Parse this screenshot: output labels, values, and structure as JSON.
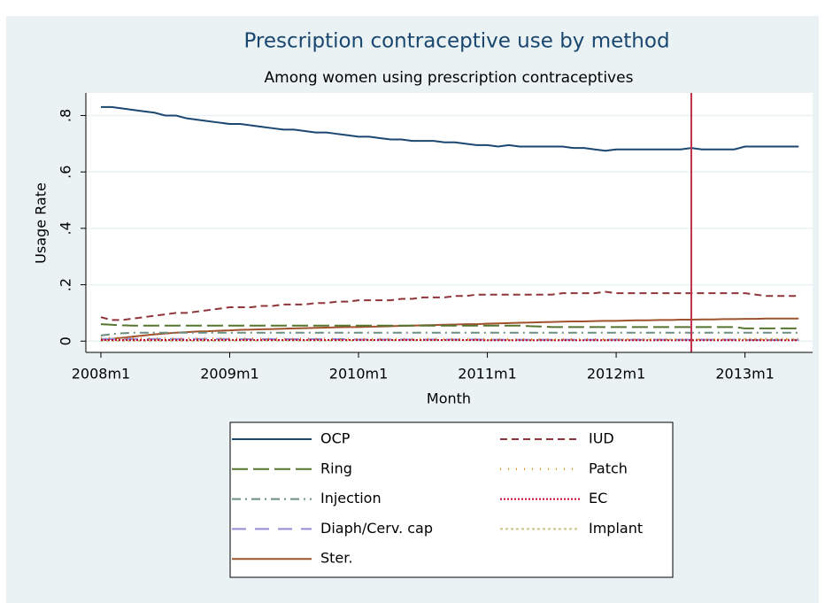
{
  "chart_data": {
    "type": "line",
    "title": "Prescription contraceptive use by method",
    "subtitle": "Among women using prescription contraceptives",
    "x_label": "Month",
    "y_label": "Usage Rate",
    "xlim": [
      574.6,
      642.3
    ],
    "ylim": [
      -0.04,
      0.88
    ],
    "xticks": [
      {
        "value": 576,
        "label": "2008m1"
      },
      {
        "value": 588,
        "label": "2009m1"
      },
      {
        "value": 600,
        "label": "2010m1"
      },
      {
        "value": 612,
        "label": "2011m1"
      },
      {
        "value": 624,
        "label": "2012m1"
      },
      {
        "value": 636,
        "label": "2013m1"
      }
    ],
    "yticks": [
      0,
      {
        "value": 0.2,
        "label": ".2"
      },
      {
        "value": 0.4,
        "label": ".4"
      },
      {
        "value": 0.6,
        "label": ".6"
      },
      {
        "value": 0.8,
        "label": ".8"
      }
    ],
    "grid": true,
    "legend": "bottom",
    "legend_columns": 2,
    "reference_line": {
      "x": 631,
      "color": "#c0304a"
    },
    "x": [
      576,
      577,
      578,
      579,
      580,
      581,
      582,
      583,
      584,
      585,
      586,
      587,
      588,
      589,
      590,
      591,
      592,
      593,
      594,
      595,
      596,
      597,
      598,
      599,
      600,
      601,
      602,
      603,
      604,
      605,
      606,
      607,
      608,
      609,
      610,
      611,
      612,
      613,
      614,
      615,
      616,
      617,
      618,
      619,
      620,
      621,
      622,
      623,
      624,
      625,
      626,
      627,
      628,
      629,
      630,
      631,
      632,
      633,
      634,
      635,
      636,
      637,
      638,
      639,
      640,
      641
    ],
    "series": [
      {
        "name": "OCP",
        "color": "#1a476f",
        "dash": "none",
        "values": [
          0.83,
          0.83,
          0.825,
          0.82,
          0.815,
          0.81,
          0.8,
          0.8,
          0.79,
          0.785,
          0.78,
          0.775,
          0.77,
          0.77,
          0.765,
          0.76,
          0.755,
          0.75,
          0.75,
          0.745,
          0.74,
          0.74,
          0.735,
          0.73,
          0.725,
          0.725,
          0.72,
          0.715,
          0.715,
          0.71,
          0.71,
          0.71,
          0.705,
          0.705,
          0.7,
          0.695,
          0.695,
          0.69,
          0.695,
          0.69,
          0.69,
          0.69,
          0.69,
          0.69,
          0.685,
          0.685,
          0.68,
          0.675,
          0.68,
          0.68,
          0.68,
          0.68,
          0.68,
          0.68,
          0.68,
          0.685,
          0.68,
          0.68,
          0.68,
          0.68,
          0.69,
          0.69,
          0.69,
          0.69,
          0.69,
          0.69
        ]
      },
      {
        "name": "IUD",
        "color": "#90353b",
        "dash": "8,5",
        "values": [
          0.085,
          0.075,
          0.075,
          0.08,
          0.085,
          0.09,
          0.095,
          0.1,
          0.1,
          0.105,
          0.11,
          0.115,
          0.12,
          0.12,
          0.12,
          0.125,
          0.125,
          0.13,
          0.13,
          0.13,
          0.135,
          0.135,
          0.14,
          0.14,
          0.145,
          0.145,
          0.145,
          0.145,
          0.15,
          0.15,
          0.155,
          0.155,
          0.155,
          0.16,
          0.16,
          0.165,
          0.165,
          0.165,
          0.165,
          0.165,
          0.165,
          0.165,
          0.165,
          0.17,
          0.17,
          0.17,
          0.17,
          0.175,
          0.17,
          0.17,
          0.17,
          0.17,
          0.17,
          0.17,
          0.17,
          0.17,
          0.17,
          0.17,
          0.17,
          0.17,
          0.17,
          0.165,
          0.16,
          0.16,
          0.16,
          0.16
        ]
      },
      {
        "name": "Ring",
        "color": "#55752f",
        "dash": "18,6",
        "values": [
          0.06,
          0.058,
          0.056,
          0.055,
          0.055,
          0.055,
          0.055,
          0.055,
          0.055,
          0.055,
          0.055,
          0.055,
          0.055,
          0.055,
          0.055,
          0.055,
          0.055,
          0.055,
          0.055,
          0.055,
          0.055,
          0.055,
          0.055,
          0.055,
          0.055,
          0.055,
          0.055,
          0.055,
          0.055,
          0.055,
          0.055,
          0.055,
          0.055,
          0.055,
          0.055,
          0.055,
          0.055,
          0.055,
          0.055,
          0.055,
          0.053,
          0.052,
          0.05,
          0.05,
          0.05,
          0.05,
          0.05,
          0.05,
          0.05,
          0.05,
          0.05,
          0.05,
          0.05,
          0.05,
          0.05,
          0.05,
          0.05,
          0.05,
          0.05,
          0.05,
          0.045,
          0.045,
          0.045,
          0.045,
          0.045,
          0.045
        ]
      },
      {
        "name": "Patch",
        "color": "#e37e00",
        "dash": "1,8",
        "values": [
          0.012,
          0.012,
          0.011,
          0.011,
          0.01,
          0.01,
          0.01,
          0.01,
          0.01,
          0.01,
          0.01,
          0.01,
          0.01,
          0.01,
          0.01,
          0.009,
          0.009,
          0.009,
          0.009,
          0.009,
          0.009,
          0.009,
          0.008,
          0.008,
          0.008,
          0.008,
          0.008,
          0.008,
          0.008,
          0.008,
          0.008,
          0.008,
          0.008,
          0.008,
          0.008,
          0.008,
          0.007,
          0.007,
          0.007,
          0.007,
          0.007,
          0.007,
          0.007,
          0.007,
          0.007,
          0.007,
          0.007,
          0.007,
          0.006,
          0.006,
          0.006,
          0.006,
          0.006,
          0.006,
          0.006,
          0.006,
          0.006,
          0.006,
          0.006,
          0.006,
          0.005,
          0.005,
          0.005,
          0.005,
          0.005,
          0.005
        ]
      },
      {
        "name": "Injection",
        "color": "#6e8e84",
        "dash": "10,5,2,5",
        "values": [
          0.02,
          0.025,
          0.028,
          0.03,
          0.03,
          0.03,
          0.03,
          0.03,
          0.03,
          0.03,
          0.03,
          0.03,
          0.03,
          0.03,
          0.03,
          0.03,
          0.03,
          0.03,
          0.03,
          0.03,
          0.03,
          0.03,
          0.03,
          0.03,
          0.03,
          0.03,
          0.03,
          0.03,
          0.03,
          0.03,
          0.03,
          0.03,
          0.03,
          0.03,
          0.03,
          0.03,
          0.03,
          0.03,
          0.03,
          0.03,
          0.03,
          0.03,
          0.03,
          0.03,
          0.03,
          0.03,
          0.03,
          0.03,
          0.03,
          0.03,
          0.03,
          0.03,
          0.03,
          0.03,
          0.03,
          0.03,
          0.03,
          0.03,
          0.03,
          0.03,
          0.03,
          0.03,
          0.03,
          0.03,
          0.03,
          0.03
        ]
      },
      {
        "name": "EC",
        "color": "#c10534",
        "dash": "2,2",
        "values": [
          0.004,
          0.004,
          0.004,
          0.004,
          0.004,
          0.004,
          0.004,
          0.004,
          0.004,
          0.004,
          0.004,
          0.004,
          0.004,
          0.004,
          0.004,
          0.004,
          0.004,
          0.004,
          0.004,
          0.004,
          0.004,
          0.004,
          0.004,
          0.004,
          0.004,
          0.004,
          0.004,
          0.004,
          0.004,
          0.004,
          0.004,
          0.004,
          0.004,
          0.004,
          0.004,
          0.004,
          0.003,
          0.003,
          0.003,
          0.003,
          0.003,
          0.003,
          0.003,
          0.003,
          0.003,
          0.003,
          0.003,
          0.003,
          0.003,
          0.003,
          0.003,
          0.003,
          0.003,
          0.003,
          0.003,
          0.003,
          0.003,
          0.003,
          0.003,
          0.003,
          0.003,
          0.003,
          0.003,
          0.003,
          0.003,
          0.003
        ]
      },
      {
        "name": "Diaph/Cerv. cap",
        "color": "#938dd2",
        "dash": "16,10",
        "values": [
          0.008,
          0.008,
          0.008,
          0.008,
          0.008,
          0.008,
          0.008,
          0.008,
          0.008,
          0.008,
          0.008,
          0.008,
          0.007,
          0.007,
          0.007,
          0.007,
          0.007,
          0.007,
          0.007,
          0.007,
          0.007,
          0.007,
          0.007,
          0.007,
          0.006,
          0.006,
          0.006,
          0.006,
          0.006,
          0.006,
          0.006,
          0.006,
          0.006,
          0.006,
          0.006,
          0.006,
          0.005,
          0.005,
          0.005,
          0.005,
          0.005,
          0.005,
          0.005,
          0.005,
          0.005,
          0.005,
          0.005,
          0.005,
          0.005,
          0.005,
          0.005,
          0.005,
          0.005,
          0.005,
          0.005,
          0.005,
          0.005,
          0.005,
          0.005,
          0.005,
          0.004,
          0.004,
          0.004,
          0.004,
          0.004,
          0.004
        ]
      },
      {
        "name": "Implant",
        "color": "#cac27e",
        "dash": "3,3",
        "values": [
          0.001,
          0.001,
          0.001,
          0.001,
          0.001,
          0.001,
          0.001,
          0.001,
          0.001,
          0.001,
          0.001,
          0.001,
          0.002,
          0.002,
          0.002,
          0.002,
          0.002,
          0.002,
          0.002,
          0.002,
          0.002,
          0.002,
          0.002,
          0.002,
          0.003,
          0.003,
          0.003,
          0.003,
          0.003,
          0.003,
          0.003,
          0.003,
          0.003,
          0.003,
          0.003,
          0.003,
          0.004,
          0.004,
          0.004,
          0.004,
          0.004,
          0.004,
          0.004,
          0.004,
          0.004,
          0.004,
          0.004,
          0.004,
          0.006,
          0.006,
          0.006,
          0.006,
          0.006,
          0.006,
          0.006,
          0.006,
          0.006,
          0.006,
          0.006,
          0.006,
          0.008,
          0.008,
          0.008,
          0.008,
          0.008,
          0.008
        ]
      },
      {
        "name": "Ster.",
        "color": "#a0522d",
        "dash": "none",
        "values": [
          0.005,
          0.008,
          0.012,
          0.016,
          0.02,
          0.024,
          0.027,
          0.03,
          0.032,
          0.034,
          0.035,
          0.037,
          0.038,
          0.04,
          0.041,
          0.042,
          0.043,
          0.044,
          0.045,
          0.046,
          0.047,
          0.048,
          0.049,
          0.05,
          0.05,
          0.051,
          0.052,
          0.053,
          0.054,
          0.055,
          0.056,
          0.057,
          0.058,
          0.059,
          0.06,
          0.06,
          0.062,
          0.063,
          0.064,
          0.065,
          0.066,
          0.067,
          0.068,
          0.069,
          0.07,
          0.07,
          0.071,
          0.072,
          0.072,
          0.073,
          0.074,
          0.074,
          0.075,
          0.075,
          0.076,
          0.076,
          0.077,
          0.077,
          0.078,
          0.078,
          0.079,
          0.079,
          0.08,
          0.08,
          0.08,
          0.08
        ]
      }
    ]
  }
}
